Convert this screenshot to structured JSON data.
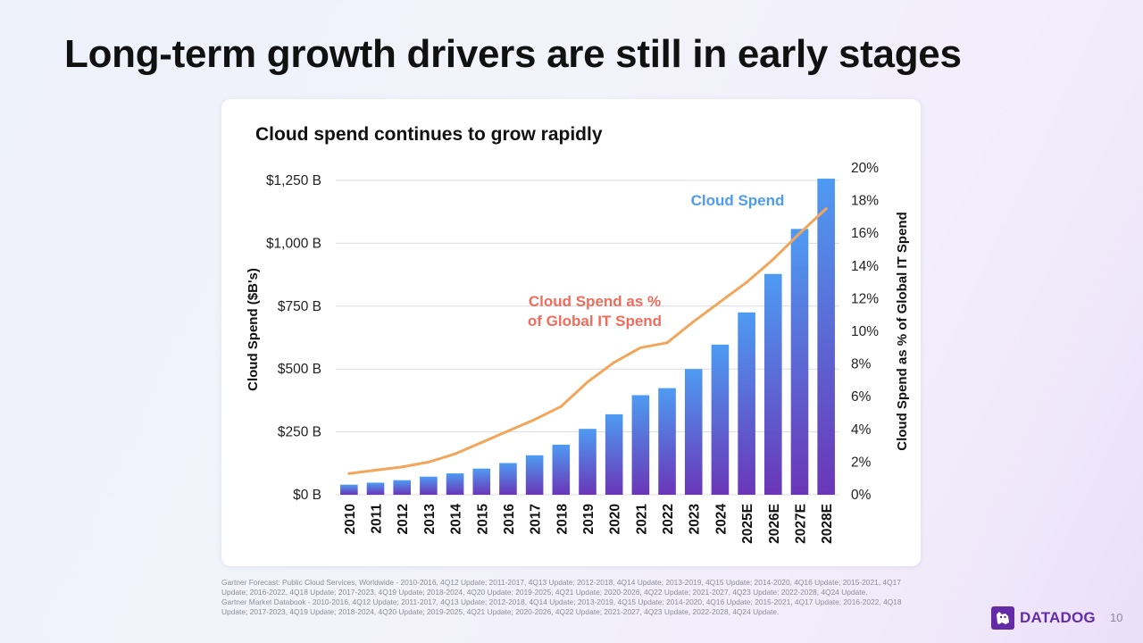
{
  "slide": {
    "title": "Long-term growth drivers are still in early stages",
    "page_number": "10",
    "logo_text": "DATADOG",
    "footnotes": [
      "Gartner Forecast: Public Cloud Services, Worldwide - 2010-2016, 4Q12 Update; 2011-2017, 4Q13 Update; 2012-2018, 4Q14 Update; 2013-2019, 4Q15 Update; 2014-2020, 4Q16 Update; 2015-2021, 4Q17 Update; 2016-2022, 4Q18 Update; 2017-2023, 4Q19 Update; 2018-2024, 4Q20 Update; 2019-2025, 4Q21 Update; 2020-2026, 4Q22 Update; 2021-2027, 4Q23 Update; 2022-2028, 4Q24 Update.",
      "Gartner Market Databook - 2010-2016, 4Q12 Update; 2011-2017, 4Q13 Update; 2012-2018, 4Q14 Update; 2013-2019, 4Q15 Update; 2014-2020, 4Q16 Update; 2015-2021, 4Q17 Update; 2016-2022, 4Q18 Update; 2017-2023, 4Q19 Update; 2018-2024, 4Q20 Update; 2019-2025, 4Q21 Update;  2020-2026, 4Q22 Update; 2021-2027, 4Q23 Update, 2022-2028, 4Q24 Update."
    ]
  },
  "chart_data": {
    "type": "bar",
    "title": "Cloud spend continues to grow rapidly",
    "categories": [
      "2010",
      "2011",
      "2012",
      "2013",
      "2014",
      "2015",
      "2016",
      "2017",
      "2018",
      "2019",
      "2020",
      "2021",
      "2022",
      "2023",
      "2024",
      "2025E",
      "2026E",
      "2027E",
      "2028E"
    ],
    "series": [
      {
        "name": "Cloud Spend",
        "type": "bar",
        "axis": "left",
        "color": "#4e9bf2",
        "color_bottom": "#6a36b8",
        "values": [
          40,
          48,
          58,
          72,
          85,
          104,
          126,
          157,
          199,
          262,
          320,
          396,
          424,
          500,
          597,
          725,
          878,
          1057,
          1257
        ]
      },
      {
        "name": "Cloud Spend as % of Global IT Spend",
        "type": "line",
        "axis": "right",
        "color": "#f2a65a",
        "values": [
          1.3,
          1.5,
          1.7,
          2.0,
          2.5,
          3.2,
          3.9,
          4.6,
          5.4,
          6.9,
          8.1,
          9.0,
          9.3,
          10.6,
          11.8,
          13.0,
          14.4,
          16.0,
          17.5
        ]
      }
    ],
    "annotations": {
      "bar_label": "Cloud Spend",
      "bar_label_color": "#4e9bf2",
      "line_label_1": "Cloud Spend as %",
      "line_label_2": "of Global IT Spend",
      "line_label_color": "#f26b5b"
    },
    "ylabel": "Cloud Spend ($B's)",
    "y2label": "Cloud Spend as % of Global IT Spend",
    "ylim": [
      0,
      1250
    ],
    "yticks": [
      0,
      250,
      500,
      750,
      1000,
      1250
    ],
    "ytick_labels": [
      "$0 B",
      "$250 B",
      "$500 B",
      "$750 B",
      "$1,000 B",
      "$1,250 B"
    ],
    "y2lim": [
      0,
      20
    ],
    "y2ticks": [
      0,
      2,
      4,
      6,
      8,
      10,
      12,
      14,
      16,
      18,
      20
    ],
    "y2tick_labels": [
      "0%",
      "2%",
      "4%",
      "6%",
      "8%",
      "10%",
      "12%",
      "14%",
      "16%",
      "18%",
      "20%"
    ],
    "grid": true
  }
}
